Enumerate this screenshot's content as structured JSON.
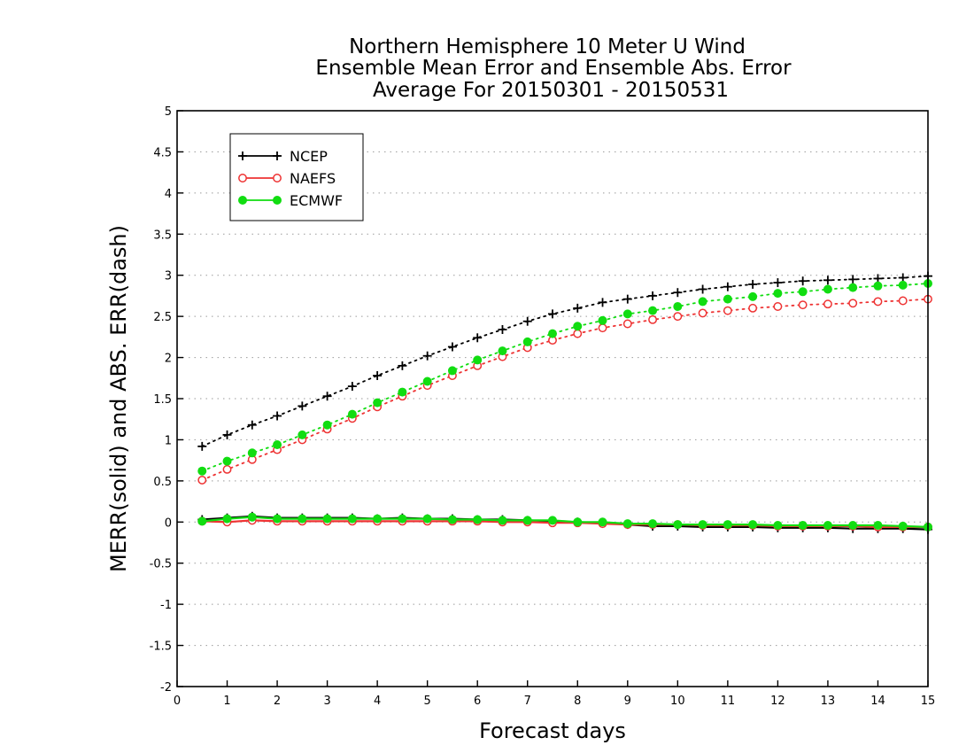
{
  "chart_data": {
    "type": "line",
    "title_lines": [
      "Northern Hemisphere 10 Meter U Wind",
      "Ensemble Mean Error and Ensemble Abs. Error",
      "Average For 20150301 - 20150531"
    ],
    "xlabel": "Forecast days",
    "ylabel": "MERR(solid) and ABS. ERR(dash)",
    "xlim": [
      0,
      15
    ],
    "ylim": [
      -2,
      5
    ],
    "xticks": [
      0,
      1,
      2,
      3,
      4,
      5,
      6,
      7,
      8,
      9,
      10,
      11,
      12,
      13,
      14,
      15
    ],
    "yticks": [
      -2,
      -1.5,
      -1,
      -0.5,
      0,
      0.5,
      1,
      1.5,
      2,
      2.5,
      3,
      3.5,
      4,
      4.5,
      5
    ],
    "ytick_labels": [
      "-2",
      "-1.5",
      "-1",
      "-0.5",
      "0",
      "0.5",
      "1",
      "1.5",
      "2",
      "2.5",
      "3",
      "3.5",
      "4",
      "4.5",
      "5"
    ],
    "grid": "horizontal dotted",
    "legend_position": "top-left",
    "x": [
      0.5,
      1,
      1.5,
      2,
      2.5,
      3,
      3.5,
      4,
      4.5,
      5,
      5.5,
      6,
      6.5,
      7,
      7.5,
      8,
      8.5,
      9,
      9.5,
      10,
      10.5,
      11,
      11.5,
      12,
      12.5,
      13,
      13.5,
      14,
      14.5,
      15
    ],
    "series": [
      {
        "name": "NCEP",
        "color": "#000000",
        "marker": "plus",
        "abs_error": [
          0.92,
          1.06,
          1.18,
          1.29,
          1.41,
          1.53,
          1.65,
          1.78,
          1.9,
          2.02,
          2.13,
          2.24,
          2.34,
          2.44,
          2.53,
          2.6,
          2.67,
          2.71,
          2.75,
          2.79,
          2.83,
          2.86,
          2.89,
          2.91,
          2.93,
          2.94,
          2.95,
          2.96,
          2.97,
          2.99
        ],
        "mean_error": [
          0.03,
          0.05,
          0.07,
          0.05,
          0.05,
          0.05,
          0.05,
          0.04,
          0.05,
          0.04,
          0.04,
          0.03,
          0.03,
          0.02,
          0.01,
          0.0,
          -0.01,
          -0.03,
          -0.05,
          -0.05,
          -0.06,
          -0.06,
          -0.06,
          -0.07,
          -0.07,
          -0.07,
          -0.08,
          -0.08,
          -0.08,
          -0.09
        ]
      },
      {
        "name": "NAEFS",
        "color": "#ee3333",
        "marker": "open-circle",
        "abs_error": [
          0.51,
          0.64,
          0.76,
          0.88,
          1.0,
          1.13,
          1.26,
          1.4,
          1.53,
          1.66,
          1.78,
          1.9,
          2.01,
          2.12,
          2.21,
          2.29,
          2.36,
          2.41,
          2.46,
          2.5,
          2.54,
          2.57,
          2.6,
          2.62,
          2.64,
          2.65,
          2.66,
          2.68,
          2.69,
          2.71
        ],
        "mean_error": [
          0.01,
          0.0,
          0.02,
          0.01,
          0.01,
          0.01,
          0.01,
          0.01,
          0.01,
          0.01,
          0.01,
          0.01,
          0.0,
          0.0,
          -0.01,
          -0.01,
          -0.02,
          -0.03,
          -0.03,
          -0.03,
          -0.04,
          -0.04,
          -0.04,
          -0.05,
          -0.05,
          -0.05,
          -0.05,
          -0.06,
          -0.06,
          -0.06
        ]
      },
      {
        "name": "ECMWF",
        "color": "#11dd11",
        "marker": "filled-circle",
        "abs_error": [
          0.62,
          0.74,
          0.84,
          0.94,
          1.06,
          1.18,
          1.31,
          1.45,
          1.58,
          1.71,
          1.84,
          1.97,
          2.08,
          2.19,
          2.29,
          2.38,
          2.45,
          2.53,
          2.57,
          2.62,
          2.68,
          2.71,
          2.74,
          2.78,
          2.8,
          2.83,
          2.85,
          2.87,
          2.88,
          2.9
        ],
        "mean_error": [
          0.01,
          0.04,
          0.06,
          0.04,
          0.04,
          0.04,
          0.04,
          0.04,
          0.04,
          0.04,
          0.03,
          0.03,
          0.02,
          0.02,
          0.02,
          0.0,
          0.0,
          -0.02,
          -0.02,
          -0.03,
          -0.03,
          -0.03,
          -0.03,
          -0.04,
          -0.04,
          -0.04,
          -0.04,
          -0.04,
          -0.05,
          -0.06
        ]
      }
    ]
  }
}
